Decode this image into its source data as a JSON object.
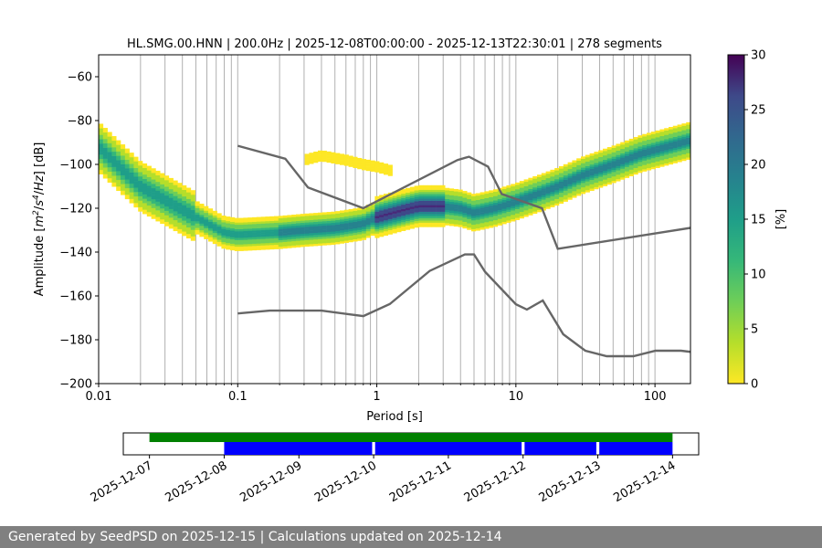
{
  "chart_data": [
    {
      "type": "heatmap",
      "subtype": "probabilistic-power-spectral-density",
      "title": "HL.SMG.00.HNN | 200.0Hz | 2025-12-08T00:00:00 - 2025-12-13T22:30:01 | 278 segments",
      "xlabel": "Period [s]",
      "ylabel_parts": [
        "Amplitude [",
        "m",
        "2",
        "/",
        "s",
        "4",
        "/",
        "Hz",
        "] [dB]"
      ],
      "xscale": "log",
      "xlim": [
        0.01,
        180
      ],
      "ylim": [
        -200,
        -50
      ],
      "xticks": [
        0.01,
        0.1,
        1,
        10,
        100
      ],
      "xtick_labels": [
        "0.01",
        "0.1",
        "1",
        "10",
        "100"
      ],
      "yticks": [
        -200,
        -180,
        -160,
        -140,
        -120,
        -100,
        -80,
        -60
      ],
      "ytick_labels": [
        "−200",
        "−180",
        "−160",
        "−140",
        "−120",
        "−100",
        "−80",
        "−60"
      ],
      "grid": "vertical minor and major period lines",
      "colormap": "viridis_r",
      "colorbar": {
        "label": "[%]",
        "range": [
          0,
          30
        ],
        "ticks": [
          0,
          5,
          10,
          15,
          20,
          25,
          30
        ],
        "tick_labels": [
          "0",
          "5",
          "10",
          "15",
          "20",
          "25",
          "30"
        ]
      },
      "mode_curve": {
        "period": [
          0.01,
          0.02,
          0.05,
          0.08,
          0.1,
          0.2,
          0.3,
          0.5,
          0.8,
          1.0,
          1.5,
          2.0,
          3.0,
          4.0,
          5.0,
          7.0,
          10,
          15,
          20,
          30,
          50,
          80,
          120,
          180
        ],
        "amplitude_db": [
          -92,
          -110,
          -124,
          -131,
          -132,
          -131,
          -130,
          -129,
          -127,
          -124,
          -121,
          -119,
          -119,
          -120,
          -122,
          -120,
          -117,
          -113,
          -110,
          -105,
          -100,
          -95,
          -92,
          -89
        ]
      },
      "secondary_branch": {
        "period": [
          0.3,
          0.4,
          0.6,
          0.8,
          1.0,
          1.3
        ],
        "amplitude_db": [
          -98,
          -96,
          -98,
          -100,
          -101,
          -103
        ]
      },
      "noise_models": [
        {
          "name": "NHNM",
          "period": [
            0.1,
            0.22,
            0.32,
            0.8,
            3.8,
            4.6,
            6.3,
            7.9,
            15.4,
            20,
            354.8
          ],
          "amplitude_db": [
            -91.5,
            -97.4,
            -110.5,
            -120,
            -98,
            -96.5,
            -101,
            -113.5,
            -120,
            -138.5,
            -126
          ]
        },
        {
          "name": "NLNM",
          "period": [
            0.1,
            0.17,
            0.4,
            0.8,
            1.24,
            2.4,
            4.3,
            5.0,
            6.0,
            10.0,
            12.0,
            15.6,
            21.9,
            31.6,
            45,
            70,
            101,
            154,
            328
          ],
          "amplitude_db": [
            -168,
            -166.7,
            -166.7,
            -169.2,
            -163.7,
            -148.6,
            -141.1,
            -141.1,
            -149,
            -163.8,
            -166.2,
            -162.1,
            -177.5,
            -185,
            -187.5,
            -187.5,
            -185,
            -185,
            -187.5
          ]
        }
      ]
    },
    {
      "type": "timeline",
      "x_tick_labels": [
        "2025-12-07",
        "2025-12-08",
        "2025-12-09",
        "2025-12-10",
        "2025-12-11",
        "2025-12-12",
        "2025-12-13",
        "2025-12-14"
      ],
      "xlim_days": [
        -0.35,
        7.35
      ],
      "available_data": {
        "color": "#008000",
        "start_day": 0.0,
        "end_day": 7.0
      },
      "used_data": {
        "color": "#0000ff",
        "segments_days": [
          [
            1.0,
            2.98
          ],
          [
            3.02,
            4.98
          ],
          [
            5.02,
            5.98
          ],
          [
            6.02,
            7.0
          ]
        ]
      }
    }
  ],
  "footer": {
    "text": "Generated by SeedPSD on 2025-12-15 | Calculations updated on 2025-12-14"
  }
}
